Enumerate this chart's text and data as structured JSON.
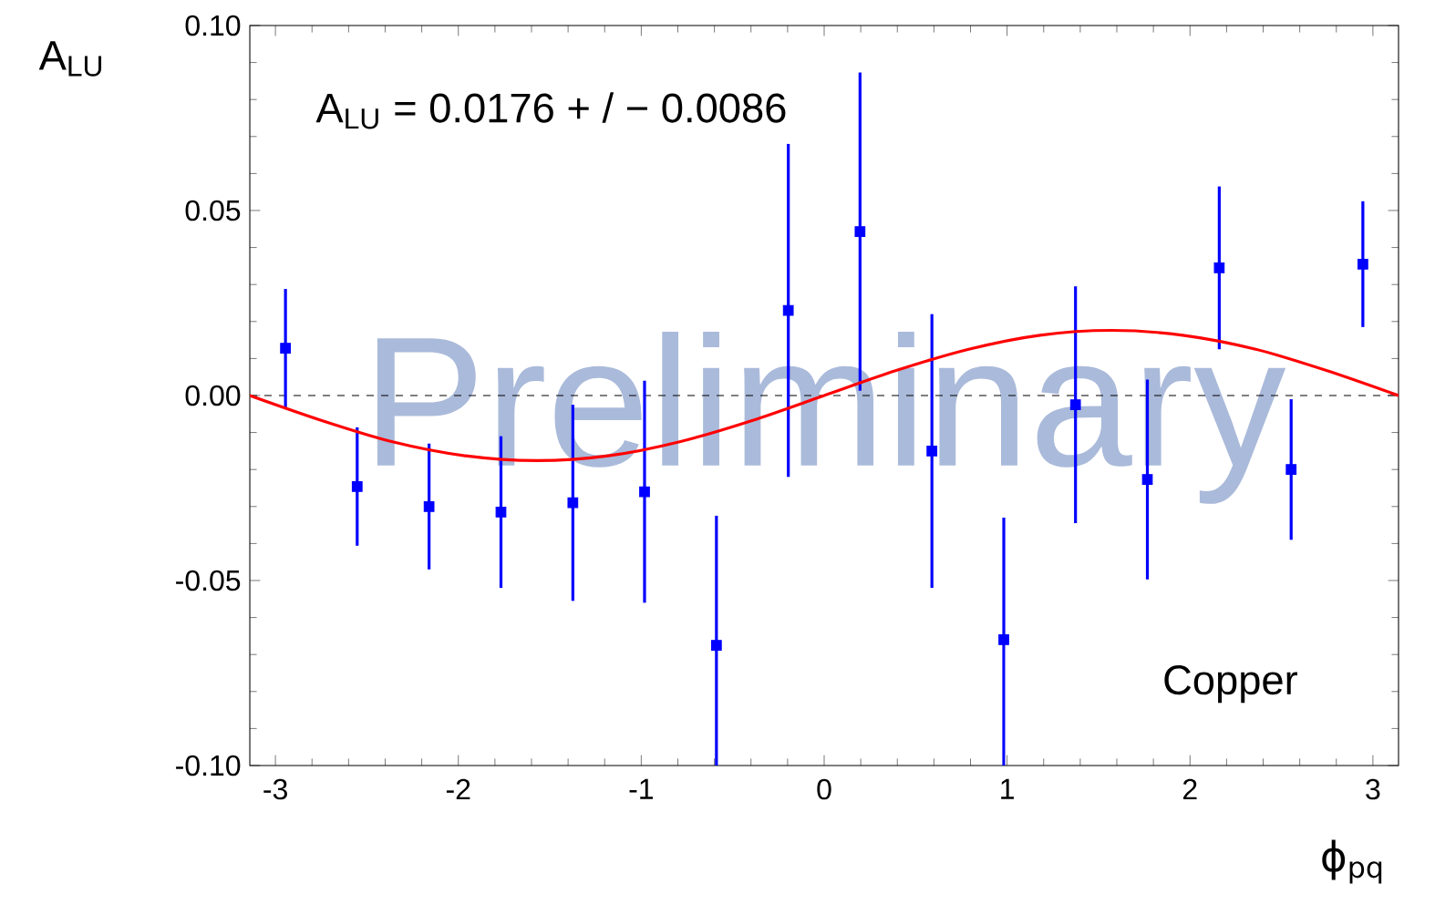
{
  "chart_data": {
    "type": "scatter",
    "xlabel": "ϕ$_{pq}$",
    "ylabel": "A$_{LU}$",
    "annotations": [
      "A$_{LU}$ = 0.0176 + / − 0.0086",
      "Copper",
      "Preliminary"
    ],
    "xlim": [
      -3.14,
      3.14
    ],
    "ylim": [
      -0.1,
      0.1
    ],
    "xticks": [
      -3,
      -2,
      -1,
      0,
      1,
      2,
      3
    ],
    "yticks": [
      {
        "value": -0.1,
        "label": "-0.10"
      },
      {
        "value": -0.05,
        "label": "-0.05"
      },
      {
        "value": 0,
        "label": "0.00"
      },
      {
        "value": 0.05,
        "label": "0.05"
      },
      {
        "value": 0.1,
        "label": "0.10"
      }
    ],
    "grid": false,
    "marker": "square",
    "ref_lines": [
      {
        "axis": "y",
        "value": 0,
        "color": "#000000",
        "line_style": "dashed"
      }
    ],
    "series": [
      {
        "color": "#0000ff",
        "x": [
          -2.945,
          -2.553,
          -2.16,
          -1.767,
          -1.374,
          -0.982,
          -0.589,
          -0.196,
          0.196,
          0.589,
          0.982,
          1.374,
          1.767,
          2.16,
          2.553,
          2.945
        ],
        "values": [
          0.0128,
          -0.0246,
          -0.03,
          -0.0315,
          -0.029,
          -0.026,
          -0.0675,
          0.023,
          0.0443,
          -0.015,
          -0.066,
          -0.0025,
          -0.0227,
          0.0345,
          -0.02,
          0.0355
        ],
        "errors": [
          0.016,
          0.016,
          0.017,
          0.0205,
          0.0265,
          0.03,
          [
            -0.1,
            -0.0325
          ],
          0.045,
          0.043,
          0.037,
          [
            -0.1,
            -0.033
          ],
          0.032,
          0.027,
          0.022,
          0.019,
          0.017
        ]
      },
      {
        "type": "line",
        "color": "#ff0000",
        "marker": "none",
        "line_style": "solid",
        "x": [
          -3.14,
          -2.75,
          -2.36,
          -1.96,
          -1.57,
          -1.18,
          -0.79,
          -0.39,
          0,
          0.39,
          0.79,
          1.18,
          1.57,
          1.96,
          2.36,
          2.75,
          3.14
        ],
        "values": [
          0.0,
          -0.0067,
          -0.0125,
          -0.0163,
          -0.0176,
          -0.0163,
          -0.0125,
          -0.0067,
          0.0,
          0.0067,
          0.0125,
          0.0163,
          0.0176,
          0.0163,
          0.0125,
          0.0067,
          0.0
        ]
      }
    ]
  }
}
